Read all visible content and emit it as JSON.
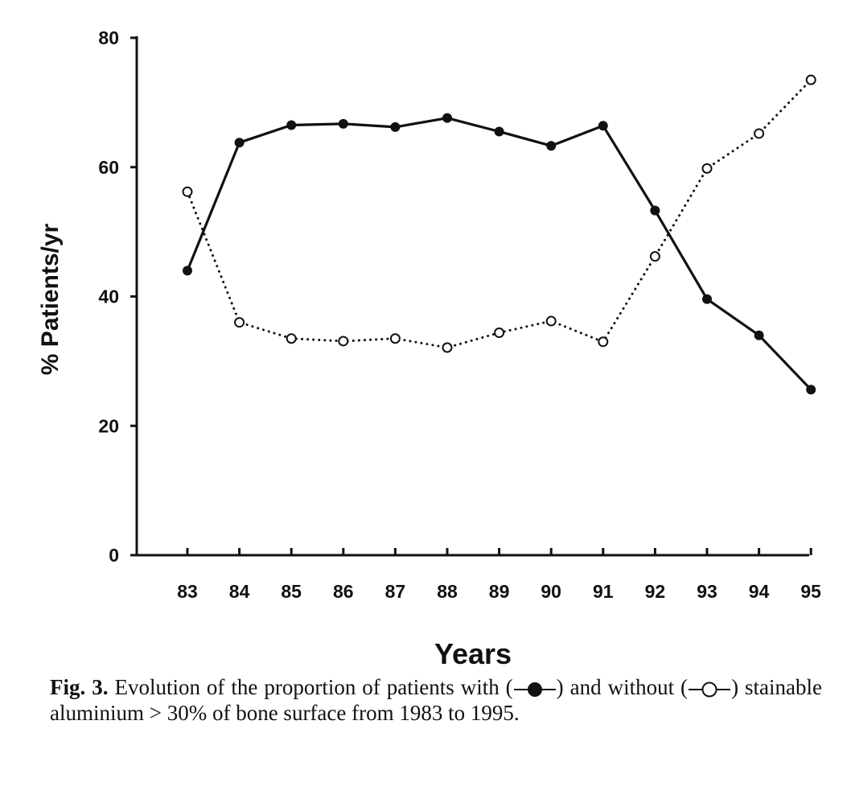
{
  "chart_data": {
    "type": "line",
    "title": "",
    "xlabel": "Years",
    "ylabel": "% Patients/yr",
    "categories": [
      "83",
      "84",
      "85",
      "86",
      "87",
      "88",
      "89",
      "90",
      "91",
      "92",
      "93",
      "94",
      "95"
    ],
    "ylim": [
      0,
      80
    ],
    "yticks": [
      0,
      20,
      40,
      60,
      80
    ],
    "grid": false,
    "series": [
      {
        "name": "",
        "marker": "filled-circle",
        "line_style": "solid",
        "values": [
          44,
          63.8,
          66.5,
          66.7,
          66.2,
          67.6,
          65.5,
          63.3,
          66.4,
          53.3,
          39.6,
          34,
          25.6
        ]
      },
      {
        "name": "",
        "marker": "open-circle",
        "line_style": "dotted",
        "values": [
          56.2,
          36,
          33.5,
          33.1,
          33.5,
          32.1,
          34.4,
          36.2,
          33,
          46.2,
          59.8,
          65.2,
          73.5
        ]
      }
    ]
  },
  "caption": {
    "fig_label": "Fig. 3.",
    "text_before_filled": "Evolution of the proportion of patients with (",
    "text_between": ") and without (",
    "text_after_open": ") stainable aluminium > 30% of bone surface from 1983 to 1995."
  },
  "colors": {
    "ink": "#111111",
    "background": "#ffffff"
  }
}
